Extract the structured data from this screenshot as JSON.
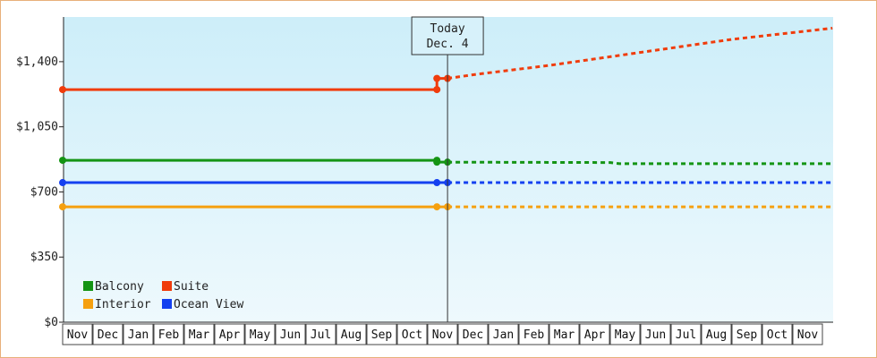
{
  "chart_data": {
    "type": "line",
    "title": "",
    "xlabel": "",
    "ylabel": "",
    "ylim": [
      0,
      1640
    ],
    "y_ticks": [
      0,
      350,
      700,
      1050,
      1400
    ],
    "y_tick_labels": [
      "$0",
      "$350",
      "$700",
      "$1,050",
      "$1,400"
    ],
    "x_months": [
      "Nov",
      "Dec",
      "Jan",
      "Feb",
      "Mar",
      "Apr",
      "May",
      "Jun",
      "Jul",
      "Aug",
      "Sep",
      "Oct",
      "Nov",
      "Dec",
      "Jan",
      "Feb",
      "Mar",
      "Apr",
      "May",
      "Jun",
      "Jul",
      "Aug",
      "Sep",
      "Oct",
      "Nov"
    ],
    "today_label": [
      "Today",
      "Dec. 4"
    ],
    "today_x": 12.65,
    "grid": false,
    "legend_position": "bottom-left",
    "series": [
      {
        "name": "Balcony",
        "color": "#149414",
        "historical": [
          [
            0,
            870
          ],
          [
            12.3,
            870
          ],
          [
            12.3,
            860
          ],
          [
            12.65,
            860
          ]
        ],
        "forecast": [
          [
            12.65,
            860
          ],
          [
            18.0,
            858
          ],
          [
            18.3,
            852
          ],
          [
            25.3,
            852
          ]
        ],
        "markers": [
          [
            0,
            870
          ],
          [
            12.3,
            870
          ],
          [
            12.3,
            860
          ],
          [
            12.65,
            860
          ]
        ]
      },
      {
        "name": "Suite",
        "color": "#f03c0c",
        "historical": [
          [
            0,
            1250
          ],
          [
            12.3,
            1250
          ],
          [
            12.3,
            1310
          ],
          [
            12.65,
            1310
          ]
        ],
        "forecast": [
          [
            12.65,
            1310
          ],
          [
            13.5,
            1330
          ],
          [
            16.0,
            1380
          ],
          [
            19.0,
            1450
          ],
          [
            22.0,
            1520
          ],
          [
            25.3,
            1580
          ]
        ],
        "markers": [
          [
            0,
            1250
          ],
          [
            12.3,
            1250
          ],
          [
            12.3,
            1310
          ],
          [
            12.65,
            1310
          ]
        ]
      },
      {
        "name": "Interior",
        "color": "#f5a00f",
        "historical": [
          [
            0,
            620
          ],
          [
            12.65,
            620
          ]
        ],
        "forecast": [
          [
            12.65,
            620
          ],
          [
            25.3,
            620
          ]
        ],
        "markers": [
          [
            0,
            620
          ],
          [
            12.3,
            620
          ],
          [
            12.65,
            620
          ]
        ]
      },
      {
        "name": "Ocean View",
        "color": "#1440f0",
        "historical": [
          [
            0,
            750
          ],
          [
            12.65,
            750
          ]
        ],
        "forecast": [
          [
            12.65,
            750
          ],
          [
            25.3,
            750
          ]
        ],
        "markers": [
          [
            0,
            750
          ],
          [
            12.3,
            750
          ],
          [
            12.65,
            750
          ]
        ]
      }
    ],
    "legend_order": [
      "Balcony",
      "Suite",
      "Interior",
      "Ocean View"
    ]
  }
}
